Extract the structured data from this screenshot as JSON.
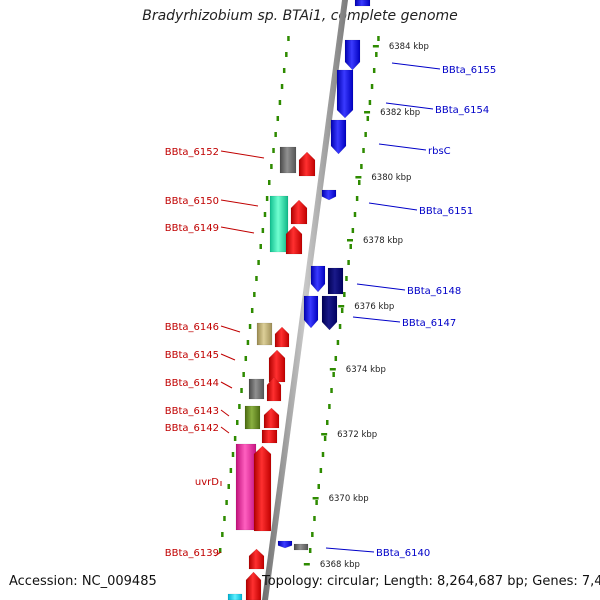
{
  "title": "Bradyrhizobium sp. BTAi1, complete genome",
  "footer": {
    "accession": "Accession: NC_009485",
    "topology": "Topology: circular; Length: 8,264,687 bp; Genes: 7,463"
  },
  "colors": {
    "left_label": "#c00000",
    "right_label": "#0000c8",
    "dots": "#2e8b00",
    "backbone": "#8c8c8c"
  },
  "scale_ticks": [
    {
      "label": "6384 kbp",
      "kb": 6384
    },
    {
      "label": "6382 kbp",
      "kb": 6382
    },
    {
      "label": "6380 kbp",
      "kb": 6380
    },
    {
      "label": "6378 kbp",
      "kb": 6378
    },
    {
      "label": "6376 kbp",
      "kb": 6376
    },
    {
      "label": "6374 kbp",
      "kb": 6374
    },
    {
      "label": "6372 kbp",
      "kb": 6372
    },
    {
      "label": "6370 kbp",
      "kb": 6370
    },
    {
      "label": "6368 kbp",
      "kb": 6368
    }
  ],
  "left_labels": [
    {
      "text": "BBta_6152"
    },
    {
      "text": "BBta_6150"
    },
    {
      "text": "BBta_6149"
    },
    {
      "text": "BBta_6146"
    },
    {
      "text": "BBta_6145"
    },
    {
      "text": "BBta_6144"
    },
    {
      "text": "BBta_6143"
    },
    {
      "text": "BBta_6142"
    },
    {
      "text": "uvrD"
    },
    {
      "text": "BBta_6139"
    }
  ],
  "right_labels": [
    {
      "text": "BBta_6155"
    },
    {
      "text": "BBta_6154"
    },
    {
      "text": "rbsC"
    },
    {
      "text": "BBta_6151"
    },
    {
      "text": "BBta_6148"
    },
    {
      "text": "BBta_6147"
    },
    {
      "text": "BBta_6140"
    }
  ]
}
